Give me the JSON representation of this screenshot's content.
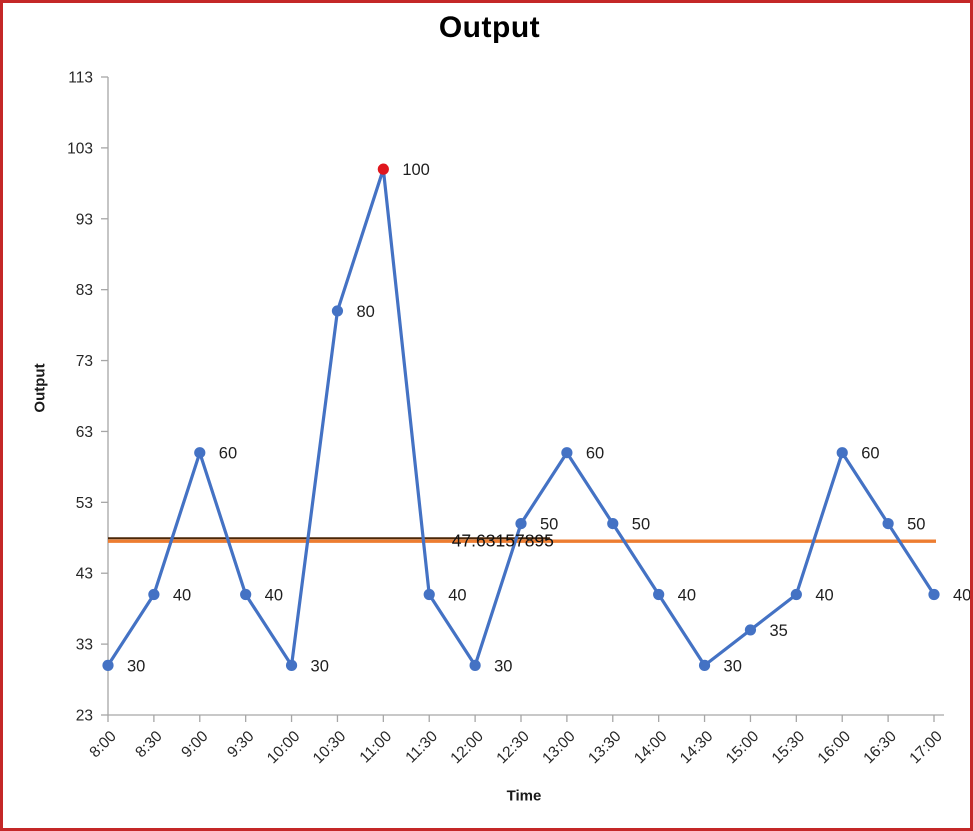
{
  "frame": {
    "border_color": "#c42828",
    "background": "#ffffff"
  },
  "chart": {
    "title": "Output",
    "y_axis_title": "Output",
    "x_axis_title": "Time"
  },
  "chart_data": {
    "type": "line",
    "title": "Output",
    "xlabel": "Time",
    "ylabel": "Output",
    "categories": [
      "8:00",
      "8:30",
      "9:00",
      "9:30",
      "10:00",
      "10:30",
      "11:00",
      "11:30",
      "12:00",
      "12:30",
      "13:00",
      "13:30",
      "14:00",
      "14:30",
      "15:00",
      "15:30",
      "16:00",
      "16:30",
      "17:00"
    ],
    "series": [
      {
        "name": "Output",
        "values": [
          30,
          40,
          60,
          40,
          30,
          80,
          100,
          40,
          30,
          50,
          60,
          50,
          40,
          30,
          35,
          40,
          60,
          50,
          40
        ],
        "color": "#4472c4",
        "marker": "circle",
        "line_width": 3.2,
        "highlight_point": {
          "index": 6,
          "category": "11:00",
          "value": 100,
          "color": "#e0161d"
        }
      }
    ],
    "data_labels": true,
    "average_line": {
      "value": 47.63157895,
      "label": "47.63157895",
      "color": "#ed7d31",
      "spans": "full-width"
    },
    "trend_line": {
      "value": 47.63157895,
      "color": "#4a2708",
      "x_start_index": 0,
      "x_end_index": 9.63
    },
    "y_axis": {
      "min": 23,
      "max": 113,
      "step": 10,
      "ticks": [
        23,
        33,
        43,
        53,
        63,
        73,
        83,
        93,
        103,
        113
      ]
    },
    "ylim": [
      23,
      113
    ],
    "grid": false,
    "legend": "none",
    "axis_color": "#a6a6a6",
    "text_color": "#262626"
  }
}
